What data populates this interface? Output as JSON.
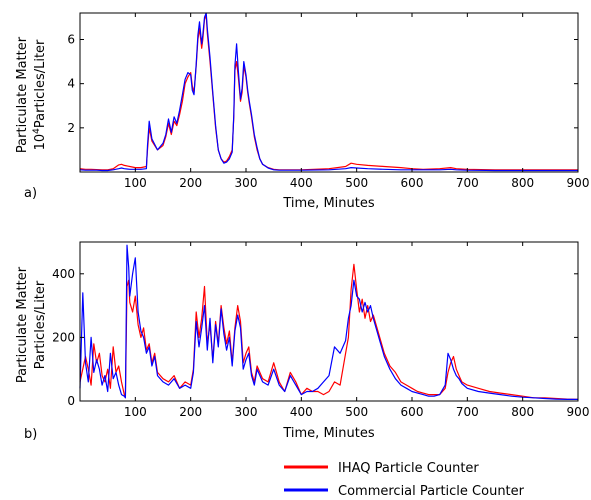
{
  "chart_data": [
    {
      "type": "line",
      "panel_label": "a)",
      "xlabel": "Time, Minutes",
      "ylabel_line1": "Particulate Matter",
      "ylabel_line2_prefix": "10",
      "ylabel_line2_sup": "4",
      "ylabel_line2_suffix": "Particles/Liter",
      "xlim": [
        0,
        900
      ],
      "ylim": [
        0,
        7.2
      ],
      "x_ticks": [
        100,
        200,
        300,
        400,
        500,
        600,
        700,
        800,
        900
      ],
      "y_ticks": [
        2,
        4,
        6
      ],
      "series": [
        {
          "name": "IHAQ Particle Counter",
          "color": "#ff0000",
          "x": [
            0,
            10,
            20,
            30,
            40,
            50,
            60,
            70,
            75,
            80,
            90,
            100,
            110,
            120,
            122,
            125,
            130,
            140,
            150,
            155,
            160,
            165,
            170,
            175,
            180,
            185,
            190,
            195,
            200,
            203,
            206,
            210,
            213,
            216,
            220,
            222,
            225,
            228,
            230,
            235,
            240,
            245,
            250,
            255,
            260,
            265,
            270,
            275,
            278,
            280,
            283,
            286,
            290,
            293,
            296,
            300,
            303,
            306,
            310,
            315,
            320,
            325,
            330,
            340,
            350,
            360,
            370,
            380,
            400,
            450,
            480,
            490,
            500,
            520,
            550,
            580,
            600,
            620,
            650,
            670,
            680,
            700,
            750,
            800,
            850,
            900
          ],
          "y": [
            0.15,
            0.12,
            0.12,
            0.11,
            0.1,
            0.1,
            0.15,
            0.32,
            0.35,
            0.3,
            0.25,
            0.2,
            0.2,
            0.25,
            1.0,
            2.0,
            1.4,
            1.0,
            1.2,
            1.6,
            2.2,
            1.7,
            2.3,
            2.1,
            2.6,
            3.2,
            4.0,
            4.3,
            4.5,
            3.9,
            3.6,
            4.8,
            6.0,
            6.5,
            5.6,
            6.0,
            6.9,
            7.1,
            6.3,
            5.0,
            3.5,
            2.0,
            1.0,
            0.6,
            0.45,
            0.5,
            0.7,
            1.0,
            2.5,
            4.6,
            5.0,
            4.3,
            3.2,
            3.6,
            4.8,
            4.3,
            3.6,
            3.1,
            2.5,
            1.6,
            1.0,
            0.6,
            0.35,
            0.2,
            0.12,
            0.1,
            0.1,
            0.1,
            0.1,
            0.15,
            0.25,
            0.4,
            0.35,
            0.3,
            0.25,
            0.2,
            0.15,
            0.12,
            0.15,
            0.2,
            0.15,
            0.12,
            0.1,
            0.1,
            0.1,
            0.1
          ]
        },
        {
          "name": "Commercial Particle Counter",
          "color": "#0000ff",
          "x": [
            0,
            10,
            20,
            30,
            40,
            50,
            60,
            70,
            75,
            80,
            90,
            100,
            110,
            120,
            122,
            125,
            130,
            140,
            150,
            155,
            160,
            165,
            170,
            175,
            180,
            185,
            190,
            195,
            200,
            203,
            206,
            210,
            213,
            216,
            220,
            222,
            225,
            228,
            230,
            235,
            240,
            245,
            250,
            255,
            260,
            265,
            270,
            275,
            278,
            280,
            283,
            286,
            290,
            293,
            296,
            300,
            303,
            306,
            310,
            315,
            320,
            325,
            330,
            340,
            350,
            360,
            370,
            380,
            400,
            450,
            480,
            490,
            500,
            520,
            550,
            580,
            600,
            620,
            650,
            670,
            680,
            700,
            750,
            800,
            850,
            900
          ],
          "y": [
            0.1,
            0.08,
            0.08,
            0.08,
            0.07,
            0.07,
            0.1,
            0.15,
            0.18,
            0.15,
            0.12,
            0.12,
            0.12,
            0.15,
            1.2,
            2.3,
            1.5,
            1.0,
            1.3,
            1.7,
            2.4,
            1.8,
            2.5,
            2.2,
            2.8,
            3.5,
            4.2,
            4.5,
            4.4,
            3.7,
            3.5,
            4.9,
            6.2,
            6.8,
            5.8,
            6.2,
            7.0,
            7.2,
            6.5,
            5.2,
            3.6,
            2.1,
            1.0,
            0.6,
            0.4,
            0.45,
            0.6,
            0.9,
            2.6,
            4.8,
            5.8,
            4.6,
            3.3,
            3.8,
            5.0,
            4.4,
            3.7,
            3.2,
            2.6,
            1.7,
            1.1,
            0.6,
            0.35,
            0.18,
            0.1,
            0.08,
            0.08,
            0.08,
            0.08,
            0.1,
            0.15,
            0.2,
            0.18,
            0.15,
            0.12,
            0.1,
            0.1,
            0.1,
            0.1,
            0.12,
            0.1,
            0.08,
            0.07,
            0.07,
            0.07,
            0.07
          ]
        }
      ]
    },
    {
      "type": "line",
      "panel_label": "b)",
      "xlabel": "Time, Minutes",
      "ylabel_line1": "Particulate Matter",
      "ylabel_line2": "Particles/Liter",
      "xlim": [
        0,
        900
      ],
      "ylim": [
        0,
        500
      ],
      "x_ticks": [
        100,
        200,
        300,
        400,
        500,
        600,
        700,
        800,
        900
      ],
      "y_ticks": [
        0,
        200,
        400
      ],
      "series": [
        {
          "name": "IHAQ Particle Counter",
          "color": "#ff0000",
          "x": [
            0,
            10,
            15,
            20,
            25,
            30,
            35,
            40,
            45,
            50,
            55,
            60,
            65,
            70,
            75,
            80,
            82,
            85,
            88,
            90,
            95,
            100,
            105,
            110,
            115,
            120,
            125,
            130,
            135,
            140,
            150,
            160,
            170,
            180,
            190,
            200,
            205,
            210,
            215,
            220,
            225,
            230,
            235,
            240,
            245,
            250,
            255,
            260,
            265,
            270,
            275,
            280,
            285,
            290,
            295,
            300,
            305,
            310,
            315,
            320,
            330,
            340,
            350,
            360,
            370,
            380,
            390,
            400,
            410,
            420,
            430,
            440,
            450,
            460,
            470,
            480,
            485,
            490,
            495,
            500,
            505,
            510,
            515,
            520,
            525,
            530,
            540,
            550,
            560,
            570,
            580,
            590,
            600,
            610,
            620,
            630,
            640,
            650,
            660,
            665,
            670,
            675,
            680,
            685,
            690,
            700,
            720,
            740,
            760,
            780,
            800,
            820,
            840,
            860,
            880,
            900
          ],
          "y": [
            60,
            140,
            100,
            50,
            180,
            120,
            150,
            80,
            60,
            100,
            40,
            170,
            90,
            110,
            60,
            20,
            10,
            360,
            380,
            310,
            280,
            330,
            240,
            200,
            230,
            160,
            180,
            120,
            150,
            90,
            70,
            60,
            80,
            40,
            60,
            50,
            100,
            280,
            200,
            260,
            360,
            180,
            240,
            130,
            250,
            180,
            300,
            230,
            180,
            220,
            120,
            230,
            300,
            250,
            120,
            150,
            170,
            90,
            60,
            110,
            70,
            60,
            120,
            60,
            30,
            90,
            60,
            20,
            40,
            30,
            30,
            20,
            30,
            60,
            50,
            150,
            200,
            350,
            430,
            350,
            280,
            320,
            260,
            300,
            250,
            270,
            210,
            150,
            110,
            90,
            60,
            50,
            40,
            30,
            25,
            20,
            20,
            20,
            40,
            90,
            120,
            140,
            100,
            80,
            60,
            50,
            40,
            30,
            25,
            20,
            15,
            10,
            10,
            8,
            6,
            5
          ],
          "y_note": ""
        },
        {
          "name": "Commercial Particle Counter",
          "color": "#0000ff",
          "x": [
            0,
            5,
            10,
            15,
            20,
            25,
            30,
            35,
            40,
            45,
            50,
            55,
            60,
            65,
            70,
            75,
            80,
            82,
            85,
            88,
            90,
            95,
            100,
            105,
            110,
            115,
            120,
            125,
            130,
            135,
            140,
            150,
            160,
            170,
            180,
            190,
            200,
            205,
            210,
            215,
            220,
            225,
            230,
            235,
            240,
            245,
            250,
            255,
            260,
            265,
            270,
            275,
            280,
            285,
            290,
            295,
            300,
            305,
            310,
            315,
            320,
            330,
            340,
            350,
            360,
            370,
            380,
            390,
            400,
            410,
            420,
            430,
            440,
            450,
            460,
            470,
            480,
            485,
            490,
            495,
            500,
            505,
            510,
            515,
            520,
            525,
            530,
            540,
            550,
            560,
            570,
            580,
            590,
            600,
            610,
            620,
            630,
            640,
            650,
            660,
            665,
            670,
            675,
            680,
            685,
            690,
            700,
            720,
            740,
            760,
            780,
            800,
            820,
            840,
            860,
            880,
            900
          ],
          "y": [
            40,
            340,
            120,
            60,
            200,
            90,
            130,
            100,
            50,
            80,
            30,
            150,
            70,
            90,
            50,
            20,
            15,
            10,
            490,
            420,
            330,
            400,
            450,
            280,
            220,
            200,
            150,
            170,
            110,
            140,
            80,
            60,
            50,
            70,
            40,
            50,
            40,
            90,
            250,
            170,
            230,
            300,
            160,
            260,
            120,
            240,
            170,
            290,
            210,
            160,
            200,
            110,
            220,
            270,
            230,
            100,
            130,
            150,
            80,
            50,
            100,
            60,
            50,
            100,
            50,
            30,
            80,
            50,
            20,
            30,
            30,
            40,
            60,
            80,
            170,
            150,
            190,
            260,
            300,
            380,
            330,
            320,
            280,
            310,
            280,
            300,
            260,
            200,
            140,
            100,
            70,
            50,
            40,
            30,
            25,
            20,
            15,
            15,
            20,
            50,
            150,
            130,
            100,
            80,
            70,
            55,
            40,
            30,
            25,
            20,
            15,
            12,
            10,
            8,
            6,
            5,
            5
          ]
        }
      ]
    }
  ],
  "legend": {
    "items": [
      {
        "label": "IHAQ Particle Counter",
        "color": "#ff0000"
      },
      {
        "label": "Commercial Particle Counter",
        "color": "#0000ff"
      }
    ],
    "placement": "bottom-right"
  }
}
